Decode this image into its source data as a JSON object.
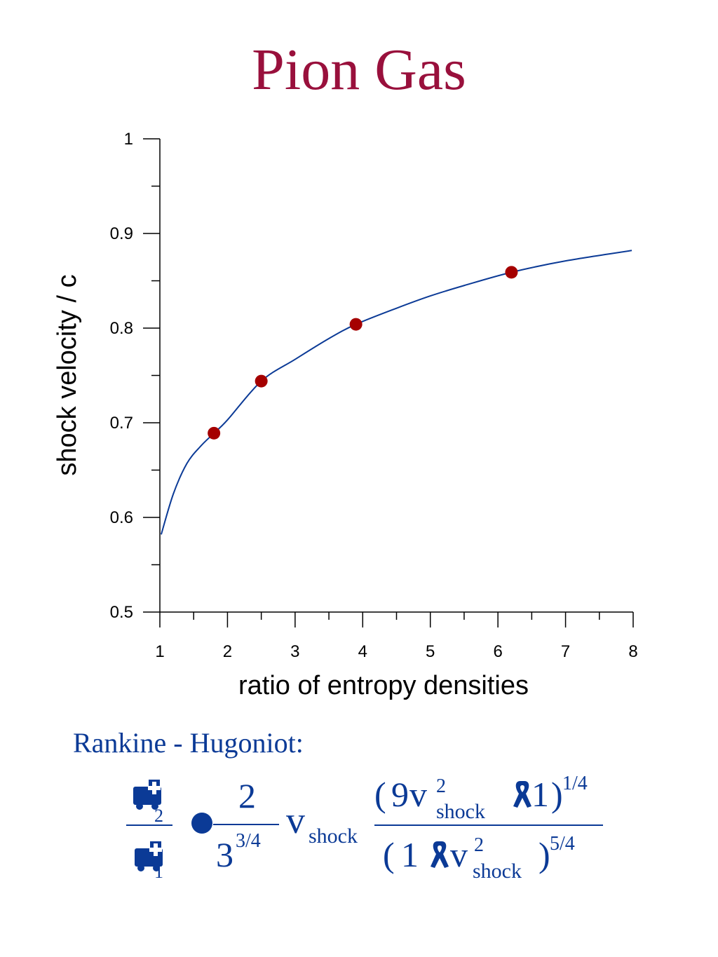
{
  "title": "Pion Gas",
  "chart_data": {
    "type": "line",
    "xlabel": "ratio of entropy densities",
    "ylabel": "shock velocity / c",
    "xlim": [
      1,
      8
    ],
    "ylim": [
      0.5,
      1
    ],
    "x_ticks": [
      "1",
      "2",
      "3",
      "4",
      "5",
      "6",
      "7",
      "8"
    ],
    "y_ticks": [
      "0.5",
      "0.6",
      "0.7",
      "0.8",
      "0.9",
      "1"
    ],
    "grid": false,
    "series": [
      {
        "kind": "curve",
        "color": "#0b3a96",
        "x": [
          1.02,
          1.2,
          1.4,
          1.6,
          1.8,
          2.0,
          2.5,
          3.0,
          3.5,
          3.9,
          4.5,
          5.0,
          5.5,
          6.2,
          7.0,
          7.98
        ],
        "y": [
          0.582,
          0.625,
          0.657,
          0.675,
          0.689,
          0.703,
          0.744,
          0.767,
          0.789,
          0.804,
          0.821,
          0.834,
          0.845,
          0.859,
          0.871,
          0.882
        ]
      },
      {
        "kind": "points",
        "color": "#a50000",
        "x": [
          1.8,
          2.5,
          3.9,
          6.2
        ],
        "y": [
          0.689,
          0.744,
          0.804,
          0.859
        ]
      }
    ]
  },
  "formula": {
    "label": "Rankine - Hugoniot:",
    "sub2": "2",
    "sub1": "1",
    "coef_num": "2",
    "coef_den_base": "3",
    "coef_den_exp": "3/4",
    "v": "v",
    "shock": "shock",
    "sq": "2",
    "lparen": "(",
    "rparen": ")",
    "nine": "9",
    "one": "1",
    "exp_num": "1/4",
    "exp_den": "5/4"
  }
}
